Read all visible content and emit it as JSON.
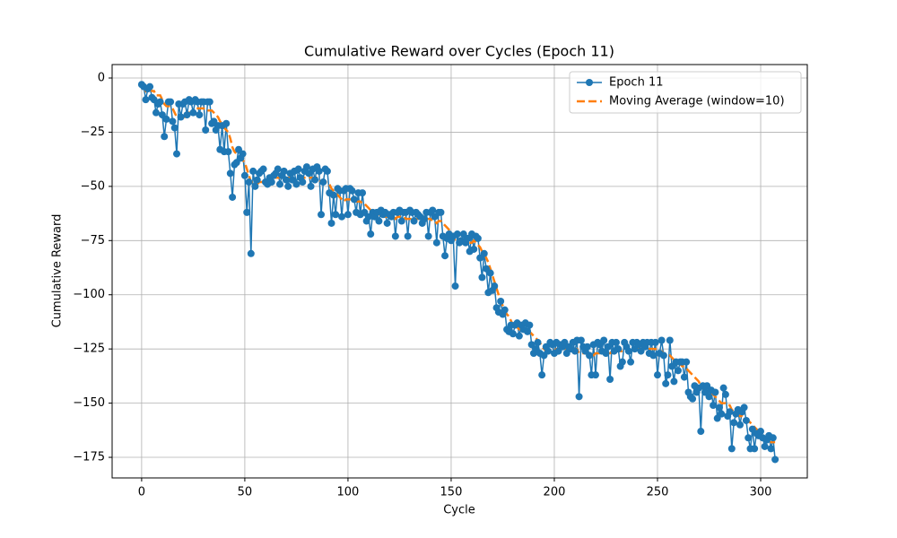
{
  "chart_data": {
    "type": "line",
    "title": "Cumulative Reward over Cycles (Epoch 11)",
    "x_label": "Cycle",
    "y_label": "Cumulative Reward",
    "xlim": [
      -14.3,
      322.6
    ],
    "ylim": [
      -184.5,
      6.2
    ],
    "xticks": [
      0,
      50,
      100,
      150,
      200,
      250,
      300
    ],
    "yticks": [
      0,
      {
        "value": -25,
        "label": "−25"
      },
      {
        "value": -50,
        "label": "−50"
      },
      {
        "value": -75,
        "label": "−75"
      },
      {
        "value": -100,
        "label": "−100"
      },
      {
        "value": -125,
        "label": "−125"
      },
      {
        "value": -150,
        "label": "−150"
      },
      {
        "value": -175,
        "label": "−175"
      }
    ],
    "grid": true,
    "legend": "upper right",
    "x": [
      0,
      1,
      2,
      3,
      4,
      5,
      6,
      7,
      8,
      9,
      10,
      11,
      12,
      13,
      14,
      15,
      16,
      17,
      18,
      19,
      20,
      21,
      22,
      23,
      24,
      25,
      26,
      27,
      28,
      29,
      30,
      31,
      32,
      33,
      34,
      35,
      36,
      37,
      38,
      39,
      40,
      41,
      42,
      43,
      44,
      45,
      46,
      47,
      48,
      49,
      50,
      51,
      52,
      53,
      54,
      55,
      56,
      57,
      58,
      59,
      60,
      61,
      62,
      63,
      64,
      65,
      66,
      67,
      68,
      69,
      70,
      71,
      72,
      73,
      74,
      75,
      76,
      77,
      78,
      79,
      80,
      81,
      82,
      83,
      84,
      85,
      86,
      87,
      88,
      89,
      90,
      91,
      92,
      93,
      94,
      95,
      96,
      97,
      98,
      99,
      100,
      101,
      102,
      103,
      104,
      105,
      106,
      107,
      108,
      109,
      110,
      111,
      112,
      113,
      114,
      115,
      116,
      117,
      118,
      119,
      120,
      121,
      122,
      123,
      124,
      125,
      126,
      127,
      128,
      129,
      130,
      131,
      132,
      133,
      134,
      135,
      136,
      137,
      138,
      139,
      140,
      141,
      142,
      143,
      144,
      145,
      146,
      147,
      148,
      149,
      150,
      151,
      152,
      153,
      154,
      155,
      156,
      157,
      158,
      159,
      160,
      161,
      162,
      163,
      164,
      165,
      166,
      167,
      168,
      169,
      170,
      171,
      172,
      173,
      174,
      175,
      176,
      177,
      178,
      179,
      180,
      181,
      182,
      183,
      184,
      185,
      186,
      187,
      188,
      189,
      190,
      191,
      192,
      193,
      194,
      195,
      196,
      197,
      198,
      199,
      200,
      201,
      202,
      203,
      204,
      205,
      206,
      207,
      208,
      209,
      210,
      211,
      212,
      213,
      214,
      215,
      216,
      217,
      218,
      219,
      220,
      221,
      222,
      223,
      224,
      225,
      226,
      227,
      228,
      229,
      230,
      231,
      232,
      233,
      234,
      235,
      236,
      237,
      238,
      239,
      240,
      241,
      242,
      243,
      244,
      245,
      246,
      247,
      248,
      249,
      250,
      251,
      252,
      253,
      254,
      255,
      256,
      257,
      258,
      259,
      260,
      261,
      262,
      263,
      264,
      265,
      266,
      267,
      268,
      269,
      270,
      271,
      272,
      273,
      274,
      275,
      276,
      277,
      278,
      279,
      280,
      281,
      282,
      283,
      284,
      285,
      286,
      287,
      288,
      289,
      290,
      291,
      292,
      293,
      294,
      295,
      296,
      297,
      298,
      299,
      300,
      301,
      302,
      303,
      304,
      305,
      306,
      307
    ],
    "series": [
      {
        "name": "Epoch 11",
        "color": "#1f77b4",
        "marker": "o",
        "values": [
          -3,
          -4,
          -10,
          -5,
          -4,
          -9,
          -10,
          -16,
          -12,
          -11,
          -17,
          -27,
          -19,
          -11,
          -11,
          -20,
          -23,
          -35,
          -12,
          -18,
          -12,
          -11,
          -17,
          -10,
          -11,
          -16,
          -10,
          -11,
          -17,
          -11,
          -11,
          -24,
          -11,
          -11,
          -21,
          -20,
          -24,
          -22,
          -33,
          -22,
          -34,
          -21,
          -34,
          -44,
          -55,
          -40,
          -39,
          -33,
          -37,
          -35,
          -45,
          -62,
          -48,
          -81,
          -43,
          -50,
          -47,
          -44,
          -43,
          -42,
          -48,
          -49,
          -46,
          -48,
          -45,
          -44,
          -42,
          -49,
          -45,
          -43,
          -47,
          -50,
          -44,
          -47,
          -43,
          -49,
          -42,
          -46,
          -48,
          -43,
          -41,
          -44,
          -50,
          -42,
          -47,
          -41,
          -43,
          -63,
          -48,
          -42,
          -43,
          -53,
          -67,
          -54,
          -63,
          -51,
          -52,
          -64,
          -52,
          -51,
          -63,
          -51,
          -52,
          -56,
          -62,
          -53,
          -63,
          -53,
          -62,
          -66,
          -64,
          -72,
          -62,
          -64,
          -62,
          -66,
          -61,
          -63,
          -62,
          -67,
          -63,
          -64,
          -62,
          -73,
          -62,
          -61,
          -66,
          -62,
          -62,
          -73,
          -61,
          -62,
          -66,
          -62,
          -63,
          -64,
          -67,
          -65,
          -62,
          -73,
          -62,
          -61,
          -64,
          -76,
          -62,
          -62,
          -73,
          -82,
          -74,
          -72,
          -75,
          -73,
          -96,
          -72,
          -76,
          -75,
          -72,
          -76,
          -74,
          -80,
          -72,
          -79,
          -73,
          -74,
          -83,
          -92,
          -81,
          -88,
          -99,
          -90,
          -98,
          -96,
          -106,
          -108,
          -103,
          -109,
          -107,
          -116,
          -117,
          -114,
          -118,
          -114,
          -113,
          -119,
          -114,
          -116,
          -113,
          -117,
          -114,
          -123,
          -127,
          -125,
          -122,
          -127,
          -137,
          -128,
          -124,
          -126,
          -122,
          -123,
          -127,
          -122,
          -126,
          -123,
          -124,
          -122,
          -127,
          -124,
          -125,
          -122,
          -126,
          -121,
          -147,
          -121,
          -124,
          -126,
          -124,
          -128,
          -137,
          -123,
          -137,
          -122,
          -123,
          -126,
          -121,
          -127,
          -124,
          -139,
          -122,
          -126,
          -122,
          -125,
          -133,
          -131,
          -122,
          -124,
          -126,
          -131,
          -122,
          -125,
          -122,
          -123,
          -126,
          -122,
          -124,
          -122,
          -127,
          -122,
          -128,
          -122,
          -137,
          -127,
          -121,
          -128,
          -141,
          -137,
          -121,
          -133,
          -140,
          -131,
          -135,
          -131,
          -131,
          -138,
          -131,
          -145,
          -147,
          -148,
          -142,
          -145,
          -143,
          -163,
          -142,
          -145,
          -142,
          -147,
          -144,
          -151,
          -145,
          -157,
          -152,
          -155,
          -143,
          -146,
          -156,
          -154,
          -171,
          -159,
          -155,
          -153,
          -160,
          -154,
          -152,
          -158,
          -166,
          -171,
          -162,
          -171,
          -164,
          -165,
          -163,
          -166,
          -170,
          -167,
          -165,
          -171,
          -166,
          -176
        ]
      },
      {
        "name": "Moving Average (window=10)",
        "color": "#ff7f0e",
        "dashed": true,
        "values": [
          -3,
          -4,
          -6,
          -5,
          -5,
          -6,
          -6,
          -8,
          -8,
          -8,
          -10,
          -12,
          -13,
          -13,
          -13,
          -14,
          -16,
          -18,
          -18,
          -18,
          -18,
          -18,
          -16,
          -16,
          -16,
          -16,
          -14,
          -14,
          -14,
          -14,
          -14,
          -15,
          -15,
          -15,
          -15,
          -16,
          -17,
          -18,
          -20,
          -21,
          -23,
          -24,
          -25,
          -28,
          -32,
          -34,
          -35,
          -36,
          -37,
          -38,
          -39,
          -42,
          -45,
          -48,
          -48,
          -49,
          -49,
          -48,
          -48,
          -48,
          -49,
          -48,
          -47,
          -46,
          -46,
          -46,
          -46,
          -46,
          -46,
          -46,
          -46,
          -46,
          -46,
          -46,
          -46,
          -46,
          -46,
          -46,
          -46,
          -46,
          -46,
          -46,
          -46,
          -46,
          -46,
          -46,
          -47,
          -48,
          -48,
          -48,
          -48,
          -49,
          -51,
          -52,
          -53,
          -54,
          -55,
          -56,
          -57,
          -56,
          -56,
          -56,
          -56,
          -56,
          -57,
          -57,
          -57,
          -58,
          -58,
          -59,
          -60,
          -61,
          -62,
          -62,
          -62,
          -63,
          -63,
          -63,
          -64,
          -64,
          -64,
          -64,
          -64,
          -65,
          -64,
          -64,
          -64,
          -64,
          -65,
          -65,
          -65,
          -65,
          -65,
          -65,
          -65,
          -64,
          -65,
          -65,
          -65,
          -65,
          -65,
          -66,
          -66,
          -67,
          -66,
          -66,
          -67,
          -68,
          -69,
          -70,
          -71,
          -73,
          -75,
          -75,
          -76,
          -76,
          -76,
          -76,
          -76,
          -76,
          -76,
          -75,
          -76,
          -77,
          -78,
          -80,
          -81,
          -83,
          -85,
          -88,
          -91,
          -94,
          -97,
          -100,
          -103,
          -105,
          -107,
          -109,
          -110,
          -112,
          -114,
          -115,
          -115,
          -116,
          -116,
          -116,
          -116,
          -117,
          -117,
          -118,
          -119,
          -120,
          -121,
          -122,
          -124,
          -125,
          -126,
          -126,
          -126,
          -126,
          -126,
          -125,
          -125,
          -125,
          -125,
          -125,
          -124,
          -124,
          -125,
          -125,
          -125,
          -125,
          -127,
          -127,
          -127,
          -127,
          -127,
          -127,
          -128,
          -128,
          -127,
          -127,
          -127,
          -127,
          -127,
          -127,
          -127,
          -127,
          -126,
          -126,
          -126,
          -126,
          -126,
          -126,
          -126,
          -126,
          -126,
          -126,
          -125,
          -125,
          -125,
          -125,
          -125,
          -125,
          -125,
          -125,
          -125,
          -125,
          -125,
          -125,
          -126,
          -126,
          -126,
          -127,
          -128,
          -128,
          -128,
          -129,
          -130,
          -130,
          -131,
          -132,
          -133,
          -133,
          -134,
          -135,
          -136,
          -137,
          -138,
          -139,
          -140,
          -142,
          -143,
          -144,
          -145,
          -146,
          -146,
          -146,
          -147,
          -148,
          -149,
          -150,
          -150,
          -150,
          -151,
          -151,
          -153,
          -154,
          -155,
          -155,
          -156,
          -156,
          -157,
          -157,
          -158,
          -159,
          -160,
          -161,
          -162,
          -163,
          -164,
          -165,
          -166,
          -167,
          -168,
          -168,
          -168,
          -168
        ]
      }
    ]
  }
}
